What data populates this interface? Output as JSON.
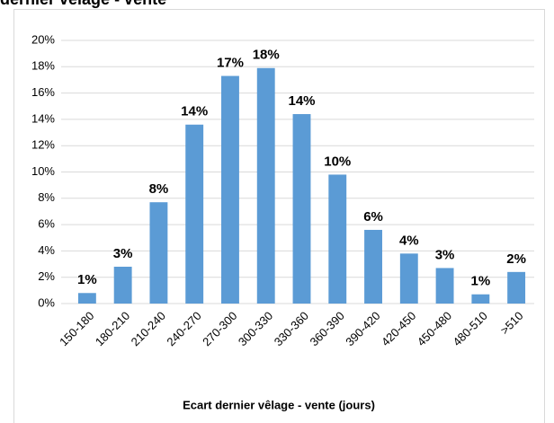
{
  "chart_data": {
    "type": "bar",
    "title": "dernier vêlage - vente",
    "x_label": "Ecart dernier vêlage - vente (jours)",
    "categories": [
      "150-180",
      "180-210",
      "210-240",
      "240-270",
      "270-300",
      "300-330",
      "330-360",
      "360-390",
      "390-420",
      "420-450",
      "450-480",
      "480-510",
      ">510"
    ],
    "values": [
      0.8,
      2.8,
      7.7,
      13.6,
      17.3,
      17.9,
      14.4,
      9.8,
      5.6,
      3.8,
      2.7,
      0.7,
      2.4
    ],
    "value_labels": [
      "1%",
      "3%",
      "8%",
      "14%",
      "17%",
      "18%",
      "14%",
      "10%",
      "6%",
      "4%",
      "3%",
      "1%",
      "2%"
    ],
    "color": "#5b9bd5",
    "ylim": [
      0,
      20
    ],
    "yticks": [
      {
        "value": 0,
        "label": "0%"
      },
      {
        "value": 2,
        "label": "2%"
      },
      {
        "value": 4,
        "label": "4%"
      },
      {
        "value": 6,
        "label": "6%"
      },
      {
        "value": 8,
        "label": "8%"
      },
      {
        "value": 10,
        "label": "10%"
      },
      {
        "value": 12,
        "label": "12%"
      },
      {
        "value": 14,
        "label": "14%"
      },
      {
        "value": 16,
        "label": "16%"
      },
      {
        "value": 18,
        "label": "18%"
      },
      {
        "value": 20,
        "label": "20%"
      }
    ],
    "grid": true
  }
}
